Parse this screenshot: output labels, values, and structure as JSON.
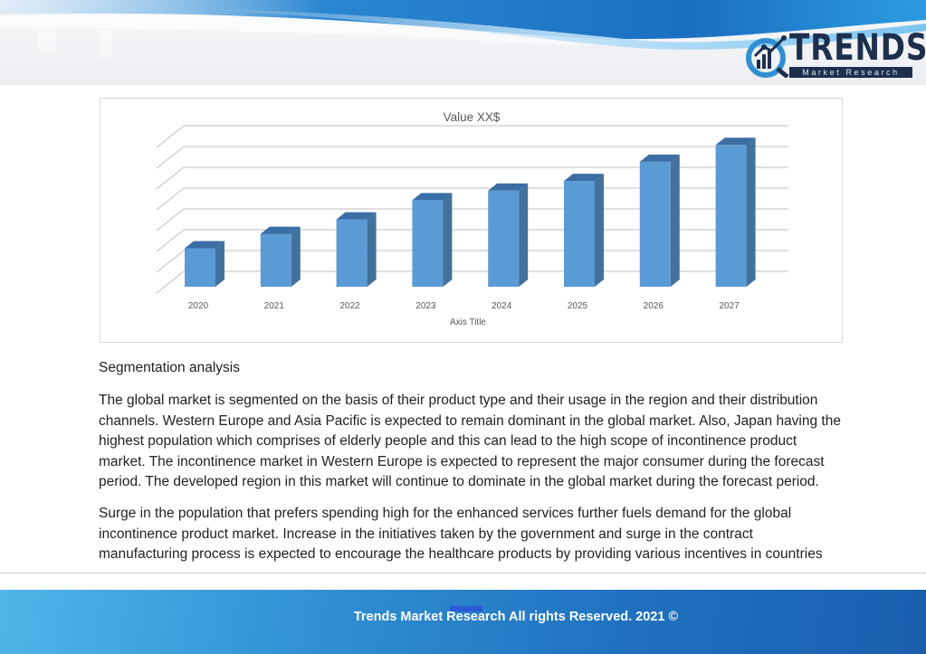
{
  "brand": {
    "logo_word": "TRENDS",
    "logo_sub": "Market Research",
    "colors": {
      "navy": "#1d2f4d",
      "header_blue": "#1f78c8",
      "bar_front": "#5b9bd5",
      "bar_side": "#41719c",
      "bar_top": "#3b6ea5"
    }
  },
  "chart_data": {
    "type": "bar",
    "title": "Value XX$",
    "xlabel": "Axis Title",
    "ylabel": "",
    "categories": [
      "2020",
      "2021",
      "2022",
      "2023",
      "2024",
      "2025",
      "2026",
      "2027"
    ],
    "values": [
      16,
      22,
      28,
      36,
      40,
      44,
      52,
      59
    ],
    "ylim": [
      0,
      70
    ],
    "grid": true,
    "style": "3d-column",
    "legend": "none"
  },
  "content": {
    "section_title": "Segmentation analysis",
    "paragraph_1": "The global market is segmented on the basis of their product type and their usage in the region and their distribution channels. Western Europe and Asia Pacific is expected to remain dominant in the global market. Also, Japan having the highest population which comprises of elderly people and this can lead to the high scope of incontinence product market. The incontinence market in Western Europe is expected to represent the major consumer during the forecast period. The developed region in this market will continue to dominate in the global market during the forecast period.",
    "paragraph_2": "Surge in the population that prefers spending high for the enhanced services further fuels demand for the global incontinence product market. Increase in the initiatives taken by the government and surge in the contract manufacturing process is expected to encourage the healthcare products by providing various incentives in countries"
  },
  "footer": {
    "text": "Trends Market Research All rights Reserved. 2021 ©"
  }
}
